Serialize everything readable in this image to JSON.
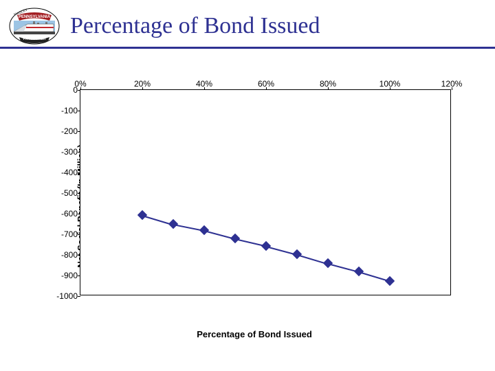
{
  "header": {
    "title": "Percentage of Bond Issued",
    "title_color": "#2e3192",
    "rule_color": "#2e3192"
  },
  "logo": {
    "top_text": "MAGLEV",
    "banner_text": "PENNSYLVANIA",
    "bottom_text": "PITTSBURGH",
    "banner_color": "#a31e22",
    "outline_color": "#000000",
    "sky_color": "#9cc4e4",
    "train_body": "#ffffff",
    "train_nose": "#d8dde3",
    "train_stripe": "#c1282d"
  },
  "chart": {
    "type": "line",
    "ylabel": "Net Social Benefit (In Million)",
    "xlabel": "Percentage of Bond Issued",
    "label_fontsize": 13,
    "tick_fontsize": 12,
    "xlim": [
      0,
      120
    ],
    "ylim": [
      -1000,
      0
    ],
    "xticks": [
      0,
      20,
      40,
      60,
      80,
      100,
      120
    ],
    "xtick_labels": [
      "0%",
      "20%",
      "40%",
      "60%",
      "80%",
      "100%",
      "120%"
    ],
    "yticks": [
      0,
      -100,
      -200,
      -300,
      -400,
      -500,
      -600,
      -700,
      -800,
      -900,
      -1000
    ],
    "ytick_labels": [
      "0",
      "-100",
      "-200",
      "-300",
      "-400",
      "-500",
      "-600",
      "-700",
      "-800",
      "-900",
      "-1000"
    ],
    "background_color": "#ffffff",
    "border_color": "#000000",
    "line_color": "#2e3192",
    "line_width": 2,
    "marker_shape": "diamond",
    "marker_size": 10,
    "marker_fill": "#2e3192",
    "marker_edge": "#2e3192",
    "points": [
      {
        "x": 20,
        "y": -605
      },
      {
        "x": 30,
        "y": -650
      },
      {
        "x": 40,
        "y": -680
      },
      {
        "x": 50,
        "y": -720
      },
      {
        "x": 60,
        "y": -755
      },
      {
        "x": 70,
        "y": -795
      },
      {
        "x": 80,
        "y": -840
      },
      {
        "x": 90,
        "y": -880
      },
      {
        "x": 100,
        "y": -925
      }
    ]
  }
}
